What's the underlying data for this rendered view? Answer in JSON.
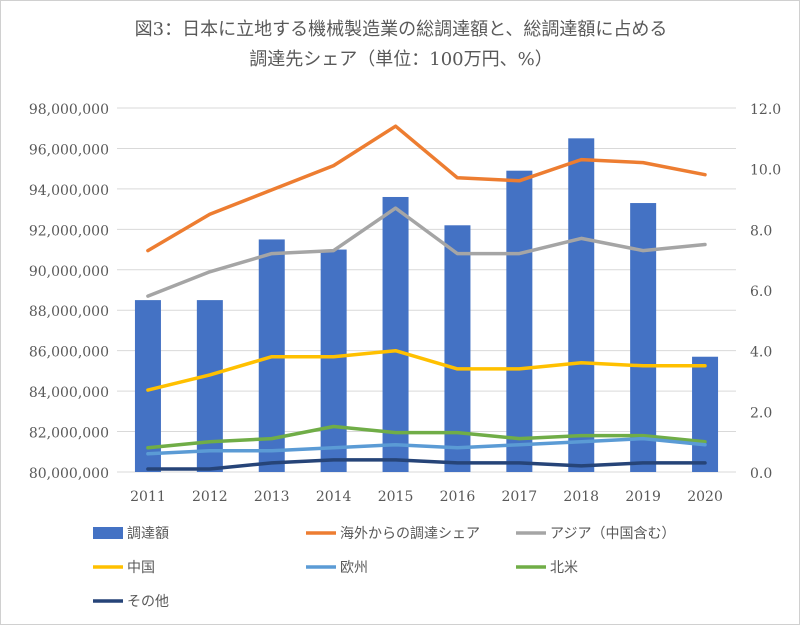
{
  "chart_data": {
    "type": "bar+line",
    "title_line1": "図3：日本に立地する機械製造業の総調達額と、総調達額に占める",
    "title_line2": "調達先シェア（単位：100万円、%）",
    "categories": [
      "2011",
      "2012",
      "2013",
      "2014",
      "2015",
      "2016",
      "2017",
      "2018",
      "2019",
      "2020"
    ],
    "y_left": {
      "ylim": [
        80000000,
        98000000
      ],
      "ticks": [
        "80,000,000",
        "82,000,000",
        "84,000,000",
        "86,000,000",
        "88,000,000",
        "90,000,000",
        "92,000,000",
        "94,000,000",
        "96,000,000",
        "98,000,000"
      ]
    },
    "y_right": {
      "ylim": [
        0,
        12
      ],
      "ticks": [
        "0.0",
        "2.0",
        "4.0",
        "6.0",
        "8.0",
        "10.0",
        "12.0"
      ]
    },
    "bars": {
      "name": "調達額",
      "color": "#4472C4",
      "values": [
        88500000,
        88500000,
        91500000,
        91000000,
        93600000,
        92200000,
        94900000,
        96500000,
        93300000,
        85700000
      ]
    },
    "series": [
      {
        "name": "海外からの調達シェア",
        "color": "#ED7D31",
        "values": [
          7.3,
          8.5,
          9.3,
          10.1,
          11.4,
          9.7,
          9.6,
          10.3,
          10.2,
          9.8
        ]
      },
      {
        "name": "アジア（中国含む）",
        "color": "#A5A5A5",
        "values": [
          5.8,
          6.6,
          7.2,
          7.3,
          8.7,
          7.2,
          7.2,
          7.7,
          7.3,
          7.5
        ]
      },
      {
        "name": "中国",
        "color": "#FFC000",
        "values": [
          2.7,
          3.2,
          3.8,
          3.8,
          4.0,
          3.4,
          3.4,
          3.6,
          3.5,
          3.5
        ]
      },
      {
        "name": "欧州",
        "color": "#5B9BD5",
        "values": [
          0.6,
          0.7,
          0.7,
          0.8,
          0.9,
          0.8,
          0.9,
          1.0,
          1.1,
          0.9
        ]
      },
      {
        "name": "北米",
        "color": "#70AD47",
        "values": [
          0.8,
          1.0,
          1.1,
          1.5,
          1.3,
          1.3,
          1.1,
          1.2,
          1.2,
          1.0
        ]
      },
      {
        "name": "その他",
        "color": "#264478",
        "values": [
          0.1,
          0.1,
          0.3,
          0.4,
          0.4,
          0.3,
          0.3,
          0.2,
          0.3,
          0.3
        ]
      }
    ],
    "grid": true,
    "legend_position": "bottom"
  }
}
